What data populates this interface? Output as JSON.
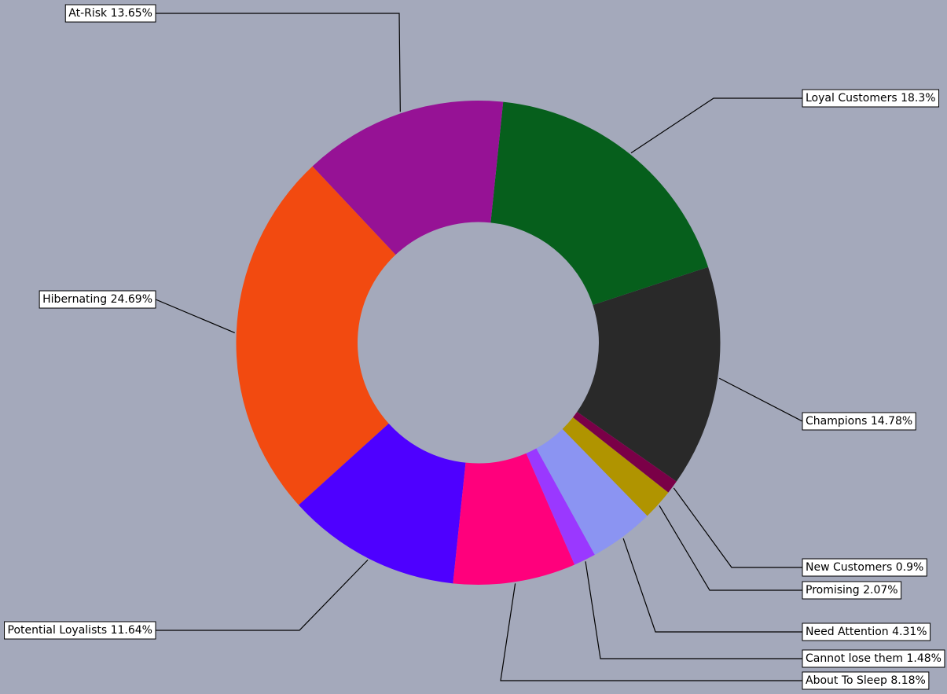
{
  "chart_data": {
    "type": "pie",
    "variant": "donut",
    "background": "#a4a9bb",
    "slices": [
      {
        "label": "Champions 14.78%",
        "value": 14.78,
        "color": "#292929"
      },
      {
        "label": "Loyal Customers 18.3%",
        "value": 18.3,
        "color": "#065f1c"
      },
      {
        "label": "At-Risk 13.65%",
        "value": 13.65,
        "color": "#961295"
      },
      {
        "label": "Hibernating 24.69%",
        "value": 24.69,
        "color": "#f24a10"
      },
      {
        "label": "Potential Loyalists 11.64%",
        "value": 11.64,
        "color": "#4e00ff"
      },
      {
        "label": "About To Sleep 8.18%",
        "value": 8.18,
        "color": "#ff007c"
      },
      {
        "label": "Cannot lose them 1.48%",
        "value": 1.48,
        "color": "#9a38ff"
      },
      {
        "label": "Need Attention 4.31%",
        "value": 4.31,
        "color": "#8b94f2"
      },
      {
        "label": "Promising 2.07%",
        "value": 2.07,
        "color": "#b09400"
      },
      {
        "label": "New Customers 0.9%",
        "value": 0.9,
        "color": "#7a0047"
      }
    ]
  }
}
